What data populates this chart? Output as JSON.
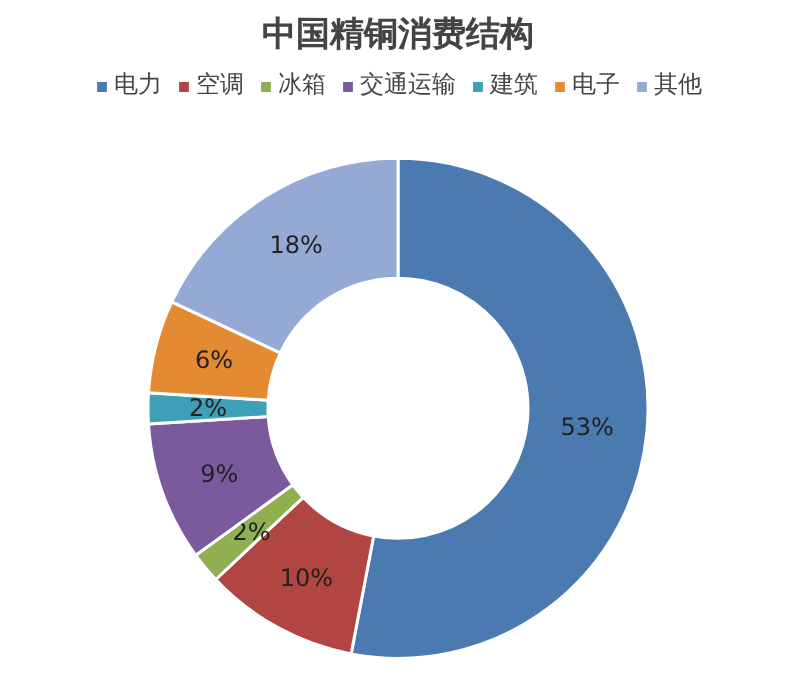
{
  "chart_data": {
    "type": "donut",
    "title": "中国精铜消费结构",
    "categories": [
      "电力",
      "空调",
      "冰箱",
      "交通运输",
      "建筑",
      "电子",
      "其他"
    ],
    "values": [
      53,
      10,
      2,
      9,
      2,
      6,
      18
    ],
    "value_labels": [
      "53%",
      "10%",
      "2%",
      "9%",
      "2%",
      "6%",
      "18%"
    ],
    "colors": [
      "#4a7ab0",
      "#b04542",
      "#8eb050",
      "#7a5a9c",
      "#3ea0b8",
      "#e38a33",
      "#94a9d4"
    ],
    "legend": "top"
  }
}
